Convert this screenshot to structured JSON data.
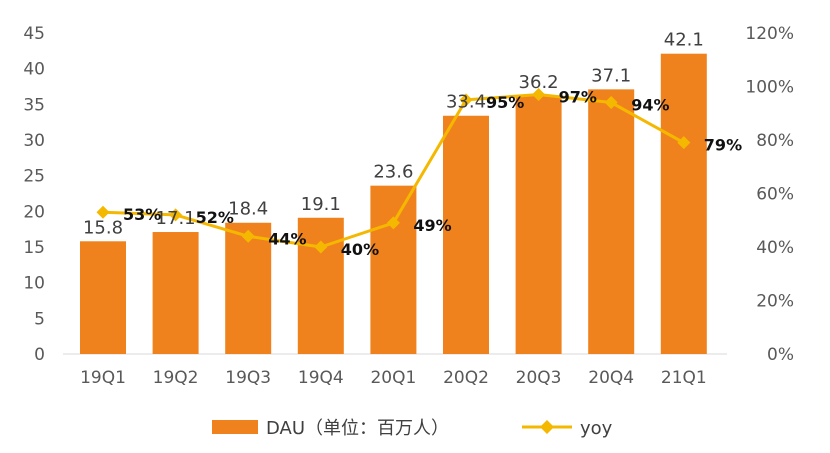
{
  "chart_data": {
    "type": "bar",
    "categories": [
      "19Q1",
      "19Q2",
      "19Q3",
      "19Q4",
      "20Q1",
      "20Q2",
      "20Q3",
      "20Q4",
      "21Q1"
    ],
    "series": [
      {
        "name": "DAU（单位：百万人）",
        "type": "bar",
        "axis": "left",
        "color": "#F0821E",
        "values": [
          15.8,
          17.1,
          18.4,
          19.1,
          23.6,
          33.4,
          36.2,
          37.1,
          42.1
        ],
        "labels": [
          "15.8",
          "17.1",
          "18.4",
          "19.1",
          "23.6",
          "33.4",
          "36.2",
          "37.1",
          "42.1"
        ]
      },
      {
        "name": "yoy",
        "type": "line",
        "axis": "right",
        "color": "#F5B800",
        "marker": "diamond",
        "values": [
          53,
          52,
          44,
          40,
          49,
          95,
          97,
          94,
          79
        ],
        "labels": [
          "53%",
          "52%",
          "44%",
          "40%",
          "49%",
          "95%",
          "97%",
          "94%",
          "79%"
        ]
      }
    ],
    "ylim": [
      0,
      45
    ],
    "yticks": [
      "0",
      "5",
      "10",
      "15",
      "20",
      "25",
      "30",
      "35",
      "40",
      "45"
    ],
    "y2lim": [
      0,
      120
    ],
    "y2ticks": [
      "0%",
      "20%",
      "40%",
      "60%",
      "80%",
      "100%",
      "120%"
    ],
    "grid": false,
    "legend": "bottom"
  }
}
